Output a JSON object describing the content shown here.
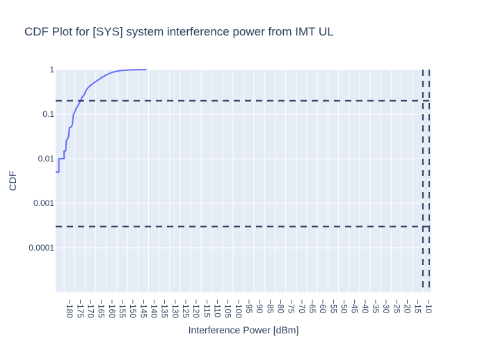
{
  "chart_data": {
    "type": "line",
    "title": "CDF Plot for [SYS] system interference power from IMT UL",
    "xlabel": "Interference Power [dBm]",
    "ylabel": "CDF",
    "xlim": [
      -184,
      -6
    ],
    "ylim": [
      1e-05,
      1
    ],
    "yscale": "log",
    "x_ticks": [
      -180,
      -175,
      -170,
      -165,
      -160,
      -155,
      -150,
      -145,
      -140,
      -135,
      -130,
      -125,
      -120,
      -115,
      -110,
      -105,
      -100,
      -95,
      -90,
      -85,
      -80,
      -75,
      -70,
      -65,
      -60,
      -55,
      -50,
      -45,
      -40,
      -35,
      -30,
      -25,
      -20,
      -15,
      -10
    ],
    "y_ticks": [
      {
        "value": 1,
        "label": "1"
      },
      {
        "value": 0.1,
        "label": "0.1"
      },
      {
        "value": 0.01,
        "label": "0.01"
      },
      {
        "value": 0.001,
        "label": "0.001"
      },
      {
        "value": 0.0001,
        "label": "0.0001"
      }
    ],
    "grid": true,
    "series": [
      {
        "color": "#636efa",
        "x": [
          -184,
          -182.5,
          -182.5,
          -180,
          -180,
          -179.2,
          -179,
          -178.5,
          -178.2,
          -177.9,
          -177.5,
          -177,
          -176.5,
          -176,
          -175.8,
          -175.5,
          -175,
          -174.3,
          -173.6,
          -173,
          -172.2,
          -171.5,
          -170.5,
          -169.5,
          -168.5,
          -167.5,
          -166,
          -164,
          -162,
          -160,
          -158,
          -156,
          -154,
          -152,
          -150,
          -148,
          -146,
          -144,
          -141
        ],
        "y": [
          0.005,
          0.005,
          0.01,
          0.01,
          0.015,
          0.015,
          0.025,
          0.027,
          0.03,
          0.03,
          0.05,
          0.051,
          0.052,
          0.06,
          0.08,
          0.1,
          0.11,
          0.135,
          0.15,
          0.17,
          0.2,
          0.24,
          0.27,
          0.35,
          0.4,
          0.44,
          0.5,
          0.58,
          0.67,
          0.76,
          0.84,
          0.9,
          0.94,
          0.96,
          0.975,
          0.985,
          0.992,
          0.996,
          1.0
        ]
      }
    ],
    "reference_lines": {
      "color": "#2a3f5f",
      "horizontal": [
        0.2,
        0.0003
      ],
      "vertical": [
        -10,
        -7
      ]
    }
  }
}
